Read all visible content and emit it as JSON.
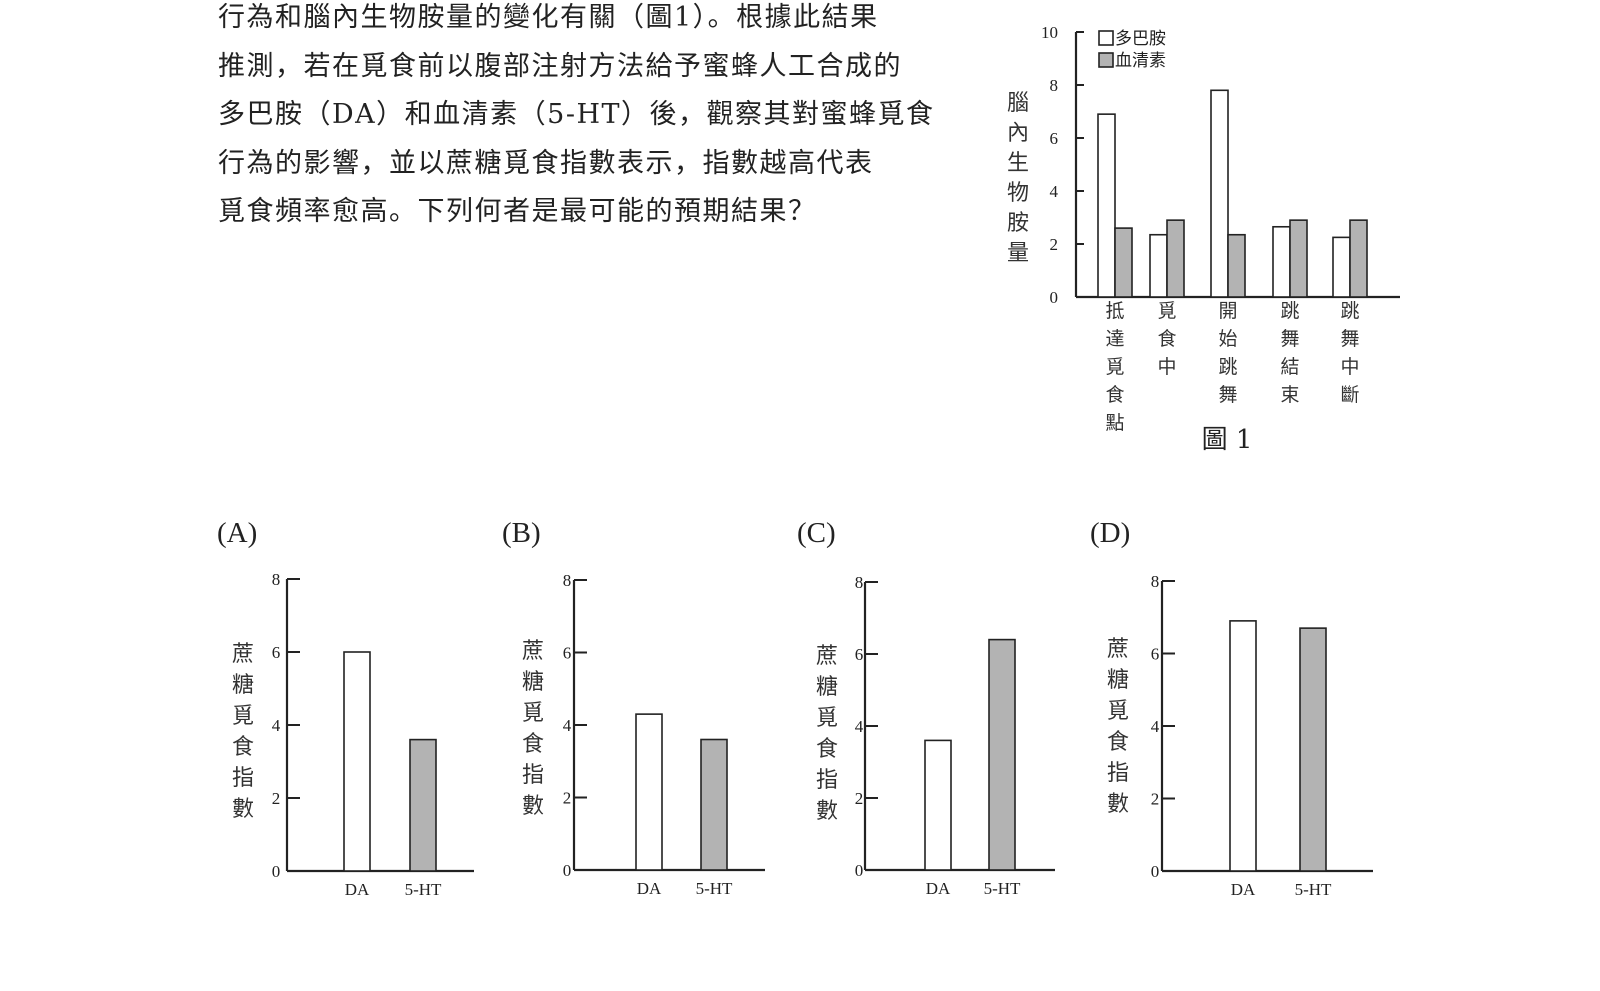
{
  "passage": {
    "lines": [
      "行為和腦內生物胺量的變化有關（圖1）。根據此結果",
      "推測，若在覓食前以腹部注射方法給予蜜蜂人工合成的",
      "多巴胺（DA）和血清素（5-HT）後，觀察其對蜜蜂覓食",
      "行為的影響，並以蔗糖覓食指數表示，指數越高代表",
      "覓食頻率愈高。下列何者是最可能的預期結果？"
    ]
  },
  "figure1": {
    "caption": "圖 1"
  },
  "chart_data": [
    {
      "id": "figure-1",
      "type": "bar",
      "title": "圖 1",
      "ylabel": "腦內生物胺量",
      "xlabel": "",
      "ylim": [
        0,
        10
      ],
      "yticks": [
        0,
        2,
        4,
        6,
        8,
        10
      ],
      "categories": [
        "抵達覓食點",
        "覓食中",
        "開始跳舞",
        "跳舞結束",
        "跳舞中斷"
      ],
      "series": [
        {
          "name": "多巴胺",
          "color": "#ffffff",
          "values": [
            6.9,
            2.35,
            7.8,
            2.65,
            2.25
          ]
        },
        {
          "name": "血清素",
          "color": "#b3b3b3",
          "values": [
            2.6,
            2.9,
            2.35,
            2.9,
            2.9
          ]
        }
      ],
      "legend": "top-left",
      "grid": false
    },
    {
      "id": "option-a",
      "type": "bar",
      "label": "(A)",
      "ylabel": "蔗糖覓食指數",
      "ylim": [
        0,
        8
      ],
      "yticks": [
        0,
        2,
        4,
        6,
        8
      ],
      "categories": [
        "DA",
        "5-HT"
      ],
      "values": [
        6.0,
        3.6
      ],
      "colors": [
        "#ffffff",
        "#b3b3b3"
      ],
      "grid": false
    },
    {
      "id": "option-b",
      "type": "bar",
      "label": "(B)",
      "ylabel": "蔗糖覓食指數",
      "ylim": [
        0,
        8
      ],
      "yticks": [
        0,
        2,
        4,
        6,
        8
      ],
      "categories": [
        "DA",
        "5-HT"
      ],
      "values": [
        4.3,
        3.6
      ],
      "colors": [
        "#ffffff",
        "#b3b3b3"
      ],
      "grid": false
    },
    {
      "id": "option-c",
      "type": "bar",
      "label": "(C)",
      "ylabel": "蔗糖覓食指數",
      "ylim": [
        0,
        8
      ],
      "yticks": [
        0,
        2,
        4,
        6,
        8
      ],
      "categories": [
        "DA",
        "5-HT"
      ],
      "values": [
        3.6,
        6.4
      ],
      "colors": [
        "#ffffff",
        "#b3b3b3"
      ],
      "grid": false
    },
    {
      "id": "option-d",
      "type": "bar",
      "label": "(D)",
      "ylabel": "蔗糖覓食指數",
      "ylim": [
        0,
        8
      ],
      "yticks": [
        0,
        2,
        4,
        6,
        8
      ],
      "categories": [
        "DA",
        "5-HT"
      ],
      "values": [
        6.9,
        6.7
      ],
      "colors": [
        "#ffffff",
        "#b3b3b3"
      ],
      "grid": false
    }
  ]
}
